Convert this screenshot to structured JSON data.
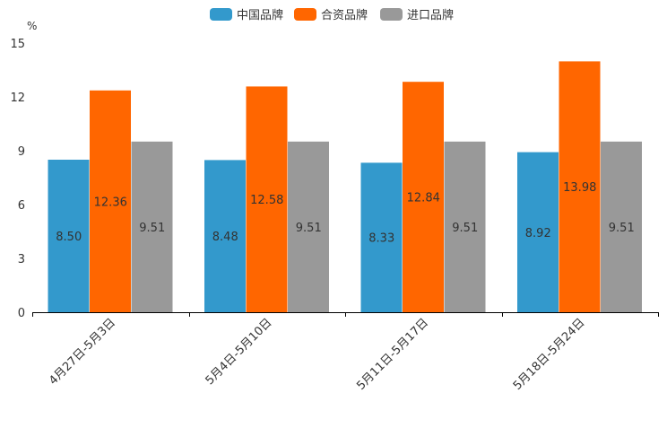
{
  "chart_data": {
    "type": "bar",
    "unit": "%",
    "categories": [
      "4月27日-5月3日",
      "5月4日-5月10日",
      "5月11日-5月17日",
      "5月18日-5月24日"
    ],
    "series": [
      {
        "name": "中国品牌",
        "color": "#3399cc",
        "values": [
          8.5,
          8.48,
          8.33,
          8.92
        ],
        "labels": [
          "8.50",
          "8.48",
          "8.33",
          "8.92"
        ]
      },
      {
        "name": "合资品牌",
        "color": "#ff6600",
        "values": [
          12.36,
          12.58,
          12.84,
          13.98
        ],
        "labels": [
          "12.36",
          "12.58",
          "12.84",
          "13.98"
        ]
      },
      {
        "name": "进口品牌",
        "color": "#999999",
        "values": [
          9.51,
          9.51,
          9.51,
          9.51
        ],
        "labels": [
          "9.51",
          "9.51",
          "9.51",
          "9.51"
        ]
      }
    ],
    "yticks": [
      "0",
      "3",
      "6",
      "9",
      "12",
      "15"
    ],
    "ylim": [
      0,
      15
    ],
    "legend_position": "top-center",
    "grid": false
  }
}
